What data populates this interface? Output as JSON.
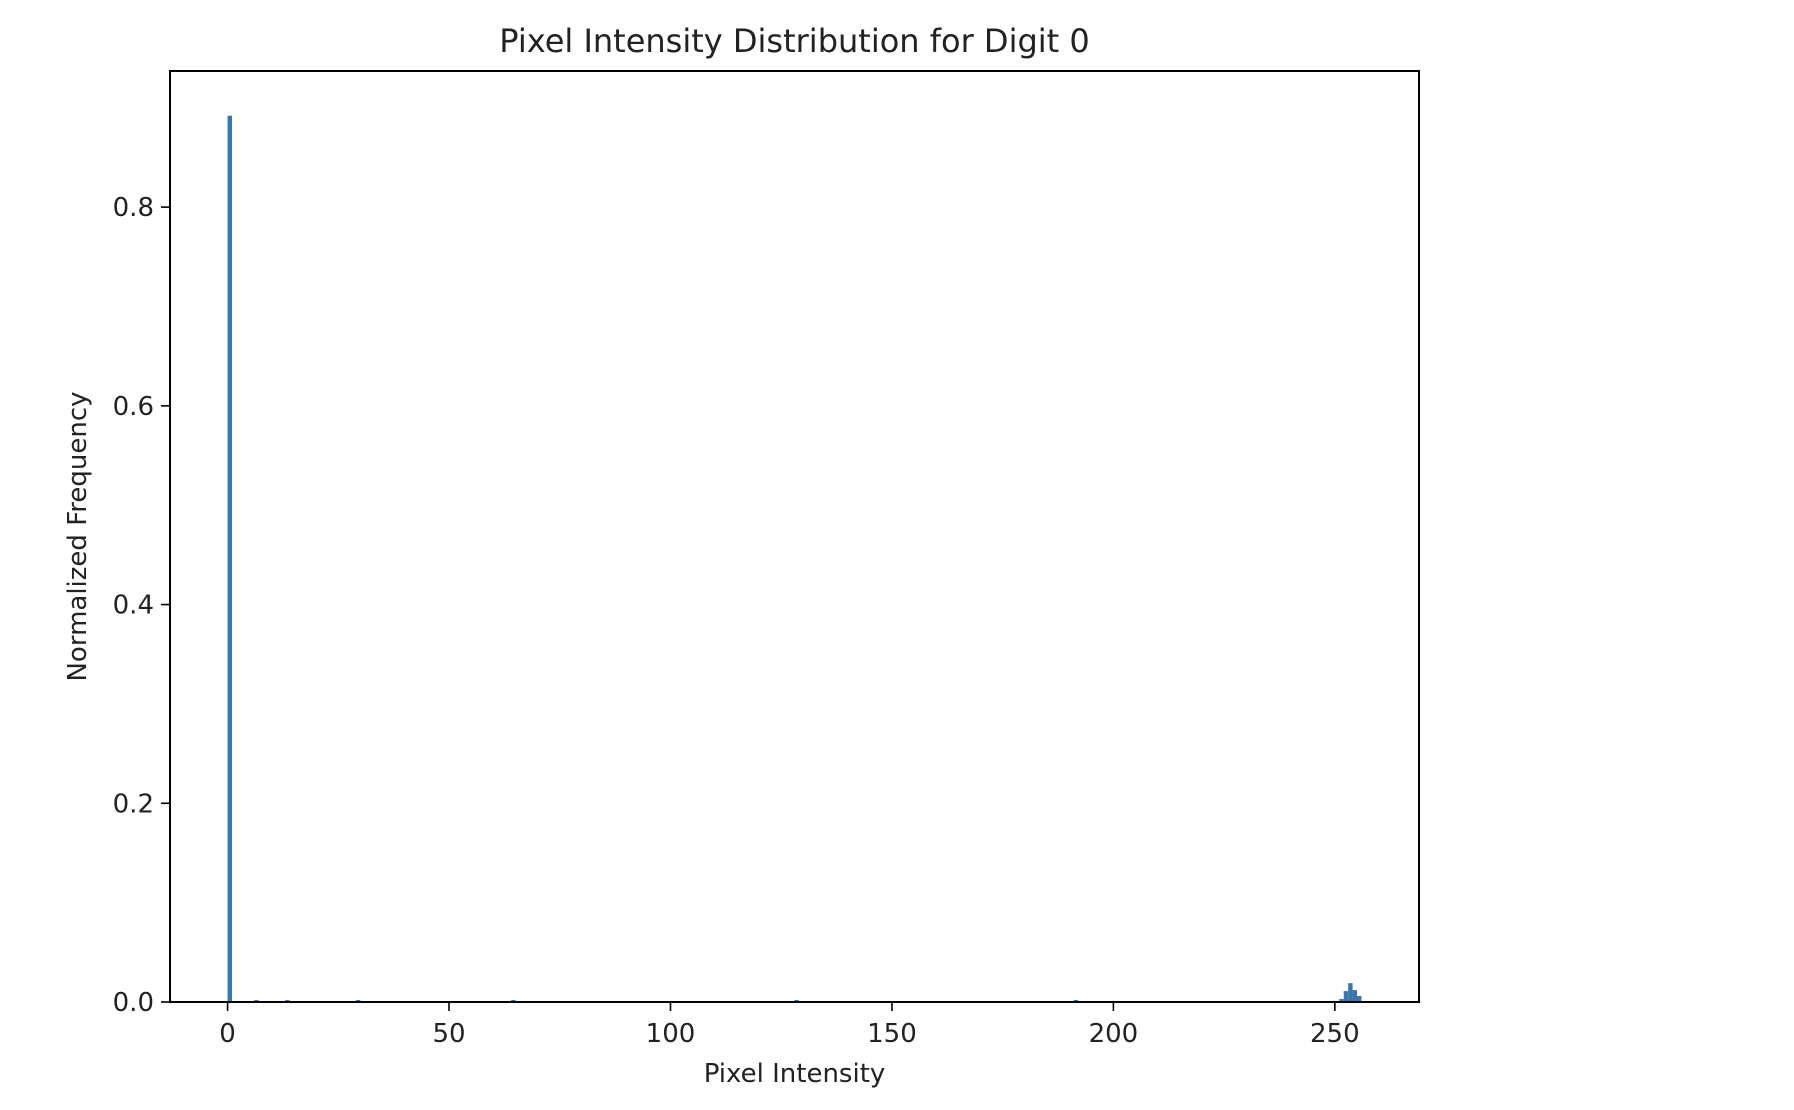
{
  "chart_data": {
    "type": "bar",
    "title": "Pixel Intensity Distribution for Digit 0",
    "xlabel": "Pixel Intensity",
    "ylabel": "Normalized Frequency",
    "xlim": [
      -13,
      269
    ],
    "ylim": [
      0,
      0.937
    ],
    "xticks": [
      0,
      50,
      100,
      150,
      200,
      250
    ],
    "yticks": [
      0.0,
      0.2,
      0.4,
      0.6,
      0.8
    ],
    "grid": false,
    "bar_color": "#3a75af",
    "bins": [
      {
        "x0": 0,
        "x1": 1,
        "value": 0.892
      },
      {
        "x0": 6,
        "x1": 7,
        "value": 0.002
      },
      {
        "x0": 13,
        "x1": 14,
        "value": 0.002
      },
      {
        "x0": 29,
        "x1": 30,
        "value": 0.002
      },
      {
        "x0": 64,
        "x1": 65,
        "value": 0.002
      },
      {
        "x0": 128,
        "x1": 129,
        "value": 0.002
      },
      {
        "x0": 191,
        "x1": 192,
        "value": 0.002
      },
      {
        "x0": 251,
        "x1": 252,
        "value": 0.003
      },
      {
        "x0": 252,
        "x1": 253,
        "value": 0.011
      },
      {
        "x0": 253,
        "x1": 254,
        "value": 0.019
      },
      {
        "x0": 254,
        "x1": 255,
        "value": 0.012
      },
      {
        "x0": 255,
        "x1": 256,
        "value": 0.006
      }
    ]
  }
}
